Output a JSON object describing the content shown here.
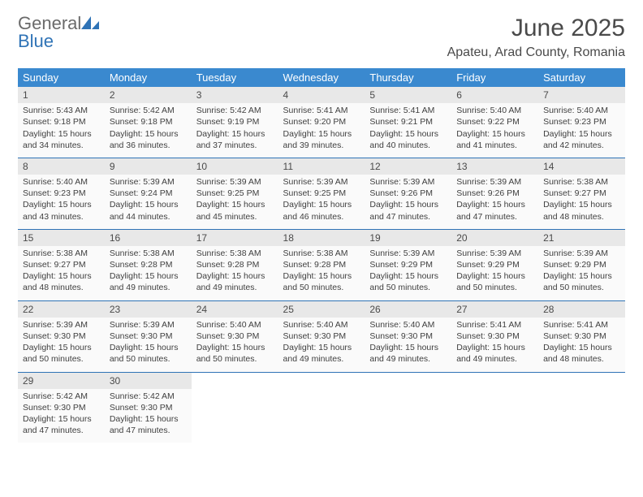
{
  "brand": {
    "part1": "General",
    "part2": "Blue"
  },
  "title": "June 2025",
  "location": "Apateu, Arad County, Romania",
  "colors": {
    "header_bg": "#3a89cf",
    "header_text": "#ffffff",
    "rule": "#2f73b6",
    "cell_bg": "#fafafa",
    "daynum_bg": "#e8e8e8",
    "text": "#3f3f3f",
    "brand_gray": "#6a6a6a",
    "brand_blue": "#2f73b6"
  },
  "weekdays": [
    "Sunday",
    "Monday",
    "Tuesday",
    "Wednesday",
    "Thursday",
    "Friday",
    "Saturday"
  ],
  "weeks": [
    [
      {
        "n": "1",
        "sr": "5:43 AM",
        "ss": "9:18 PM",
        "dl": "15 hours and 34 minutes."
      },
      {
        "n": "2",
        "sr": "5:42 AM",
        "ss": "9:18 PM",
        "dl": "15 hours and 36 minutes."
      },
      {
        "n": "3",
        "sr": "5:42 AM",
        "ss": "9:19 PM",
        "dl": "15 hours and 37 minutes."
      },
      {
        "n": "4",
        "sr": "5:41 AM",
        "ss": "9:20 PM",
        "dl": "15 hours and 39 minutes."
      },
      {
        "n": "5",
        "sr": "5:41 AM",
        "ss": "9:21 PM",
        "dl": "15 hours and 40 minutes."
      },
      {
        "n": "6",
        "sr": "5:40 AM",
        "ss": "9:22 PM",
        "dl": "15 hours and 41 minutes."
      },
      {
        "n": "7",
        "sr": "5:40 AM",
        "ss": "9:23 PM",
        "dl": "15 hours and 42 minutes."
      }
    ],
    [
      {
        "n": "8",
        "sr": "5:40 AM",
        "ss": "9:23 PM",
        "dl": "15 hours and 43 minutes."
      },
      {
        "n": "9",
        "sr": "5:39 AM",
        "ss": "9:24 PM",
        "dl": "15 hours and 44 minutes."
      },
      {
        "n": "10",
        "sr": "5:39 AM",
        "ss": "9:25 PM",
        "dl": "15 hours and 45 minutes."
      },
      {
        "n": "11",
        "sr": "5:39 AM",
        "ss": "9:25 PM",
        "dl": "15 hours and 46 minutes."
      },
      {
        "n": "12",
        "sr": "5:39 AM",
        "ss": "9:26 PM",
        "dl": "15 hours and 47 minutes."
      },
      {
        "n": "13",
        "sr": "5:39 AM",
        "ss": "9:26 PM",
        "dl": "15 hours and 47 minutes."
      },
      {
        "n": "14",
        "sr": "5:38 AM",
        "ss": "9:27 PM",
        "dl": "15 hours and 48 minutes."
      }
    ],
    [
      {
        "n": "15",
        "sr": "5:38 AM",
        "ss": "9:27 PM",
        "dl": "15 hours and 48 minutes."
      },
      {
        "n": "16",
        "sr": "5:38 AM",
        "ss": "9:28 PM",
        "dl": "15 hours and 49 minutes."
      },
      {
        "n": "17",
        "sr": "5:38 AM",
        "ss": "9:28 PM",
        "dl": "15 hours and 49 minutes."
      },
      {
        "n": "18",
        "sr": "5:38 AM",
        "ss": "9:28 PM",
        "dl": "15 hours and 50 minutes."
      },
      {
        "n": "19",
        "sr": "5:39 AM",
        "ss": "9:29 PM",
        "dl": "15 hours and 50 minutes."
      },
      {
        "n": "20",
        "sr": "5:39 AM",
        "ss": "9:29 PM",
        "dl": "15 hours and 50 minutes."
      },
      {
        "n": "21",
        "sr": "5:39 AM",
        "ss": "9:29 PM",
        "dl": "15 hours and 50 minutes."
      }
    ],
    [
      {
        "n": "22",
        "sr": "5:39 AM",
        "ss": "9:30 PM",
        "dl": "15 hours and 50 minutes."
      },
      {
        "n": "23",
        "sr": "5:39 AM",
        "ss": "9:30 PM",
        "dl": "15 hours and 50 minutes."
      },
      {
        "n": "24",
        "sr": "5:40 AM",
        "ss": "9:30 PM",
        "dl": "15 hours and 50 minutes."
      },
      {
        "n": "25",
        "sr": "5:40 AM",
        "ss": "9:30 PM",
        "dl": "15 hours and 49 minutes."
      },
      {
        "n": "26",
        "sr": "5:40 AM",
        "ss": "9:30 PM",
        "dl": "15 hours and 49 minutes."
      },
      {
        "n": "27",
        "sr": "5:41 AM",
        "ss": "9:30 PM",
        "dl": "15 hours and 49 minutes."
      },
      {
        "n": "28",
        "sr": "5:41 AM",
        "ss": "9:30 PM",
        "dl": "15 hours and 48 minutes."
      }
    ],
    [
      {
        "n": "29",
        "sr": "5:42 AM",
        "ss": "9:30 PM",
        "dl": "15 hours and 47 minutes."
      },
      {
        "n": "30",
        "sr": "5:42 AM",
        "ss": "9:30 PM",
        "dl": "15 hours and 47 minutes."
      },
      {
        "empty": true
      },
      {
        "empty": true
      },
      {
        "empty": true
      },
      {
        "empty": true
      },
      {
        "empty": true
      }
    ]
  ],
  "labels": {
    "sunrise": "Sunrise: ",
    "sunset": "Sunset: ",
    "daylight": "Daylight: "
  }
}
